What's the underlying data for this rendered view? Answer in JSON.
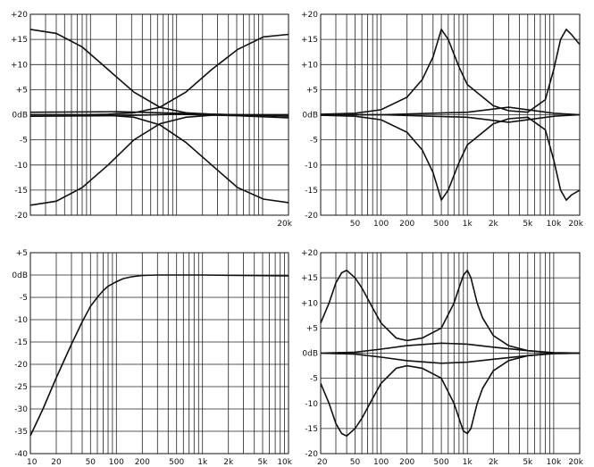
{
  "chart_data": [
    {
      "type": "line",
      "title": "",
      "xscale": "log",
      "xlim": [
        20,
        20000
      ],
      "ylim": [
        -20,
        20
      ],
      "grid": true,
      "y_ticks": [
        "+20",
        "+15",
        "+10",
        "+5",
        "0dB",
        "-5",
        "-10",
        "-15",
        "-20"
      ],
      "y_tick_values": [
        20,
        15,
        10,
        5,
        0,
        -5,
        -10,
        -15,
        -20
      ],
      "x_ticks": [
        "20k"
      ],
      "x_tick_values": [
        20000
      ],
      "x_overprint": "",
      "series": [
        {
          "x": [
            20,
            40,
            80,
            160,
            320,
            640,
            1280,
            2560,
            5120,
            10240,
            20000
          ],
          "y": [
            17,
            16.2,
            13.5,
            9,
            4.5,
            1.5,
            0.4,
            0.1,
            0,
            0,
            0
          ]
        },
        {
          "x": [
            20,
            40,
            80,
            160,
            320,
            640,
            1280,
            2560,
            5120,
            10240,
            20000
          ],
          "y": [
            -18,
            -17.2,
            -14.5,
            -10,
            -5,
            -1.8,
            -0.5,
            -0.1,
            0,
            0,
            0
          ]
        },
        {
          "x": [
            20,
            40,
            80,
            160,
            320,
            640,
            1280,
            2560,
            5120,
            10240,
            20000
          ],
          "y": [
            0,
            0,
            0,
            0.1,
            0.4,
            1.5,
            4.5,
            9,
            13,
            15.5,
            16
          ]
        },
        {
          "x": [
            20,
            40,
            80,
            160,
            320,
            640,
            1280,
            2560,
            5120,
            10240,
            20000
          ],
          "y": [
            0,
            0,
            0,
            -0.1,
            -0.5,
            -2,
            -5.5,
            -10,
            -14.5,
            -16.8,
            -17.5
          ]
        },
        {
          "x": [
            20,
            200,
            1000,
            5000,
            20000
          ],
          "y": [
            0.5,
            0.6,
            0.3,
            0,
            -0.3
          ]
        },
        {
          "x": [
            20,
            200,
            1000,
            5000,
            20000
          ],
          "y": [
            -0.3,
            -0.2,
            0.1,
            -0.2,
            -0.6
          ]
        }
      ]
    },
    {
      "type": "line",
      "title": "",
      "xscale": "log",
      "xlim": [
        20,
        20000
      ],
      "ylim": [
        -20,
        20
      ],
      "grid": true,
      "y_ticks": [
        "+20",
        "+15",
        "+10",
        "+5",
        "0dB",
        "-5",
        "-10",
        "-15",
        "-20"
      ],
      "y_tick_values": [
        20,
        15,
        10,
        5,
        0,
        -5,
        -10,
        -15,
        -20
      ],
      "x_ticks": [
        "50",
        "100",
        "200",
        "500",
        "1k",
        "2k",
        "5k",
        "10k",
        "20k"
      ],
      "x_tick_values": [
        50,
        100,
        200,
        500,
        1000,
        2000,
        5000,
        10000,
        20000
      ],
      "x_overprint": "20k",
      "series": [
        {
          "x": [
            20,
            50,
            100,
            200,
            300,
            400,
            500,
            600,
            800,
            1000,
            2000,
            3000,
            5000,
            8000,
            10000,
            12000,
            14000,
            16000,
            20000
          ],
          "y": [
            0.1,
            0.3,
            1,
            3.5,
            7,
            11.5,
            17,
            15,
            9.5,
            6,
            1.8,
            0.8,
            0.5,
            3,
            9,
            15,
            17,
            16,
            14
          ]
        },
        {
          "x": [
            20,
            50,
            100,
            200,
            300,
            400,
            500,
            600,
            800,
            1000,
            2000,
            3000,
            5000,
            8000,
            10000,
            12000,
            14000,
            16000,
            20000
          ],
          "y": [
            -0.1,
            -0.3,
            -1,
            -3.5,
            -7,
            -11.5,
            -17,
            -15,
            -9.5,
            -6,
            -1.8,
            -0.8,
            -0.5,
            -3,
            -9,
            -15,
            -17,
            -16,
            -15
          ]
        },
        {
          "x": [
            20,
            100,
            1000,
            3000,
            10000,
            20000
          ],
          "y": [
            0,
            0,
            0.5,
            1.5,
            0.3,
            0
          ]
        },
        {
          "x": [
            20,
            100,
            1000,
            3000,
            10000,
            20000
          ],
          "y": [
            0,
            0,
            -0.5,
            -1.5,
            -0.3,
            0
          ]
        }
      ]
    },
    {
      "type": "line",
      "title": "",
      "xscale": "log",
      "xlim": [
        10,
        10000
      ],
      "ylim": [
        -40,
        5
      ],
      "grid": true,
      "y_ticks": [
        "+5",
        "0dB",
        "-5",
        "-10",
        "-15",
        "-20",
        "-25",
        "-30",
        "-35",
        "-40"
      ],
      "y_tick_values": [
        5,
        0,
        -5,
        -10,
        -15,
        -20,
        -25,
        -30,
        -35,
        -40
      ],
      "x_ticks": [
        "10",
        "20",
        "50",
        "100",
        "200",
        "500",
        "1k",
        "2k",
        "5k",
        "10k"
      ],
      "x_tick_values": [
        10,
        20,
        50,
        100,
        200,
        500,
        1000,
        2000,
        5000,
        10000
      ],
      "x_overprint": "",
      "series": [
        {
          "x": [
            10,
            14,
            20,
            30,
            40,
            50,
            60,
            70,
            80,
            100,
            120,
            150,
            200,
            300,
            1000,
            10000
          ],
          "y": [
            -36,
            -30,
            -23,
            -15.5,
            -10.5,
            -7,
            -5,
            -3.5,
            -2.5,
            -1.5,
            -0.8,
            -0.4,
            -0.1,
            0,
            0,
            -0.2
          ]
        }
      ]
    },
    {
      "type": "line",
      "title": "",
      "xscale": "log",
      "xlim": [
        20,
        20000
      ],
      "ylim": [
        -20,
        20
      ],
      "grid": true,
      "y_ticks": [
        "+20",
        "+15",
        "+10",
        "+5",
        "0dB",
        "-5",
        "-10",
        "-15",
        "-20"
      ],
      "y_tick_values": [
        20,
        15,
        10,
        5,
        0,
        -5,
        -10,
        -15,
        -20
      ],
      "x_ticks": [
        "20",
        "50",
        "100",
        "200",
        "500",
        "1k",
        "2k",
        "5k",
        "10k",
        "20k"
      ],
      "x_tick_values": [
        20,
        50,
        100,
        200,
        500,
        1000,
        2000,
        5000,
        10000,
        20000
      ],
      "x_overprint": "",
      "series": [
        {
          "x": [
            20,
            25,
            30,
            35,
            40,
            50,
            60,
            80,
            100,
            150,
            200,
            300,
            500,
            700,
            800,
            900,
            1000,
            1100,
            1300,
            1500,
            2000,
            3000,
            5000,
            10000,
            20000
          ],
          "y": [
            6,
            10,
            14,
            16,
            16.5,
            15,
            13,
            9,
            6,
            3,
            2.5,
            3,
            5,
            10,
            13,
            15.5,
            16.5,
            15,
            10,
            7,
            3.5,
            1.5,
            0.5,
            0,
            0
          ]
        },
        {
          "x": [
            20,
            25,
            30,
            35,
            40,
            50,
            60,
            80,
            100,
            150,
            200,
            300,
            500,
            700,
            800,
            900,
            1000,
            1100,
            1300,
            1500,
            2000,
            3000,
            5000,
            10000,
            20000
          ],
          "y": [
            -6,
            -10,
            -14,
            -16,
            -16.5,
            -15,
            -13,
            -9,
            -6,
            -3,
            -2.5,
            -3,
            -5,
            -10,
            -13,
            -15.5,
            -16,
            -15,
            -10,
            -7,
            -3.5,
            -1.5,
            -0.5,
            0,
            0
          ]
        },
        {
          "x": [
            20,
            50,
            100,
            200,
            500,
            1000,
            2000,
            5000,
            10000,
            20000
          ],
          "y": [
            0,
            0.2,
            0.8,
            1.5,
            2,
            1.8,
            1.2,
            0.5,
            0.1,
            0
          ]
        },
        {
          "x": [
            20,
            50,
            100,
            200,
            500,
            1000,
            2000,
            5000,
            10000,
            20000
          ],
          "y": [
            0,
            -0.2,
            -0.8,
            -1.5,
            -2,
            -1.8,
            -1.2,
            -0.5,
            -0.1,
            0
          ]
        }
      ]
    }
  ]
}
